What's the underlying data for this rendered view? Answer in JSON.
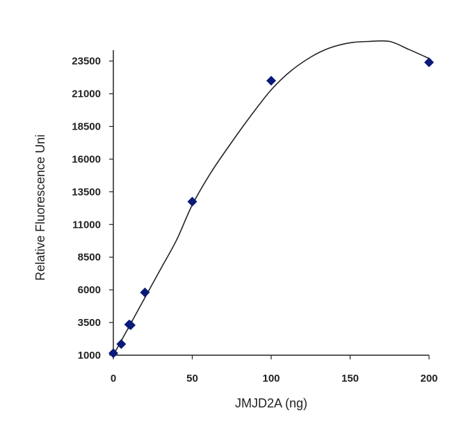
{
  "chart_data": {
    "type": "scatter",
    "title": "",
    "xlabel": "JMJD2A (ng)",
    "ylabel": "Relative Fluorescence Uni",
    "x_ticks": [
      0,
      50,
      100,
      150,
      200
    ],
    "x_tick_labels": [
      "0",
      "50",
      "100",
      "150",
      "200"
    ],
    "y_ticks": [
      1000,
      3500,
      6000,
      8500,
      11000,
      13500,
      16000,
      18500,
      21000,
      23500
    ],
    "y_tick_labels": [
      "1000",
      "3500",
      "6000",
      "8500",
      "11000",
      "13500",
      "16000",
      "18500",
      "21000",
      "23500"
    ],
    "xlim": [
      0,
      200
    ],
    "ylim": [
      1000,
      25400
    ],
    "grid": false,
    "series": [
      {
        "points": [
          {
            "x": 0,
            "y": 1150
          },
          {
            "x": 5,
            "y": 1850
          },
          {
            "x": 10,
            "y": 3350
          },
          {
            "x": 11,
            "y": 3300
          },
          {
            "x": 20,
            "y": 5800
          },
          {
            "x": 50,
            "y": 12750
          },
          {
            "x": 100,
            "y": 22000
          },
          {
            "x": 200,
            "y": 23400
          }
        ],
        "marker": "diamond",
        "color": "#0a1a78"
      }
    ],
    "trendline": {
      "type": "polynomial",
      "color": "#222222",
      "points": [
        {
          "x": 0,
          "y": 1000
        },
        {
          "x": 10,
          "y": 3200
        },
        {
          "x": 20,
          "y": 5400
        },
        {
          "x": 30,
          "y": 7600
        },
        {
          "x": 40,
          "y": 9800
        },
        {
          "x": 50,
          "y": 12500
        },
        {
          "x": 62,
          "y": 15000
        },
        {
          "x": 75,
          "y": 17300
        },
        {
          "x": 87,
          "y": 19300
        },
        {
          "x": 100,
          "y": 21300
        },
        {
          "x": 112,
          "y": 22700
        },
        {
          "x": 125,
          "y": 23800
        },
        {
          "x": 137,
          "y": 24500
        },
        {
          "x": 150,
          "y": 24900
        },
        {
          "x": 162,
          "y": 25000
        },
        {
          "x": 175,
          "y": 25000
        },
        {
          "x": 187,
          "y": 24400
        },
        {
          "x": 200,
          "y": 23700
        }
      ]
    }
  }
}
